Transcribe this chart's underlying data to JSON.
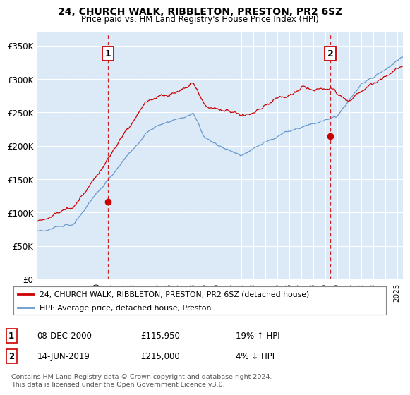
{
  "title": "24, CHURCH WALK, RIBBLETON, PRESTON, PR2 6SZ",
  "subtitle": "Price paid vs. HM Land Registry's House Price Index (HPI)",
  "ylim": [
    0,
    370000
  ],
  "yticks": [
    0,
    50000,
    100000,
    150000,
    200000,
    250000,
    300000,
    350000
  ],
  "ytick_labels": [
    "£0",
    "£50K",
    "£100K",
    "£150K",
    "£200K",
    "£250K",
    "£300K",
    "£350K"
  ],
  "xlim_start": 1995.0,
  "xlim_end": 2025.5,
  "xticks": [
    1995,
    1996,
    1997,
    1998,
    1999,
    2000,
    2001,
    2002,
    2003,
    2004,
    2005,
    2006,
    2007,
    2008,
    2009,
    2010,
    2011,
    2012,
    2013,
    2014,
    2015,
    2016,
    2017,
    2018,
    2019,
    2020,
    2021,
    2022,
    2023,
    2024,
    2025
  ],
  "background_color": "#dce9f7",
  "grid_color": "#ffffff",
  "red_line_color": "#cc0000",
  "blue_line_color": "#6699cc",
  "transaction1_x": 2000.92,
  "transaction1_y": 115950,
  "transaction1_label": "1",
  "transaction1_date": "08-DEC-2000",
  "transaction1_price": "£115,950",
  "transaction1_hpi": "19% ↑ HPI",
  "transaction2_x": 2019.45,
  "transaction2_y": 215000,
  "transaction2_label": "2",
  "transaction2_date": "14-JUN-2019",
  "transaction2_price": "£215,000",
  "transaction2_hpi": "4% ↓ HPI",
  "legend_line1": "24, CHURCH WALK, RIBBLETON, PRESTON, PR2 6SZ (detached house)",
  "legend_line2": "HPI: Average price, detached house, Preston",
  "footer_line1": "Contains HM Land Registry data © Crown copyright and database right 2024.",
  "footer_line2": "This data is licensed under the Open Government Licence v3.0."
}
